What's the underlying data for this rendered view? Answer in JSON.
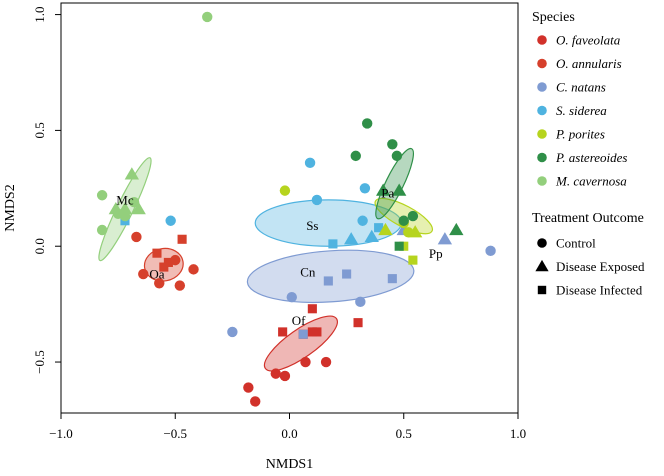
{
  "chart_data": {
    "type": "scatter",
    "title": "",
    "xlabel": "NMDS1",
    "ylabel": "NMDS2",
    "xlim": [
      -1.0,
      1.0
    ],
    "ylim": [
      -0.72,
      1.05
    ],
    "xticks": [
      -1.0,
      -0.5,
      0.0,
      0.5,
      1.0
    ],
    "yticks": [
      -0.5,
      0.0,
      0.5,
      1.0
    ],
    "xtick_labels": [
      "−1.0",
      "−0.5",
      "0.0",
      "0.5",
      "1.0"
    ],
    "ytick_labels": [
      "−0.5",
      "0.0",
      "0.5",
      "1.0"
    ],
    "grid": false,
    "legend": {
      "placement": "right",
      "species_title": "Species",
      "outcome_title": "Treatment Outcome"
    },
    "species": [
      {
        "key": "Of",
        "name": "O. faveolata",
        "color": "#d1312a"
      },
      {
        "key": "Oa",
        "name": "O. annularis",
        "color": "#d6402c"
      },
      {
        "key": "Cn",
        "name": "C. natans",
        "color": "#7f9bd2"
      },
      {
        "key": "Ss",
        "name": "S. siderea",
        "color": "#4fb3e0"
      },
      {
        "key": "Pp",
        "name": "P. porites",
        "color": "#b6d41e"
      },
      {
        "key": "Pa",
        "name": "P. astereoides",
        "color": "#2f8f48"
      },
      {
        "key": "Mc",
        "name": "M. cavernosa",
        "color": "#93cf7c"
      }
    ],
    "outcomes": [
      {
        "key": "control",
        "name": "Control",
        "shape": "circle"
      },
      {
        "key": "exposed",
        "name": "Disease Exposed",
        "shape": "triangle"
      },
      {
        "key": "infected",
        "name": "Disease Infected",
        "shape": "square"
      }
    ],
    "ellipses": [
      {
        "label": "Of",
        "species": "Of",
        "cx": 0.05,
        "cy": -0.42,
        "rx": 0.19,
        "ry": 0.06,
        "angle_deg": 35
      },
      {
        "label": "Oa",
        "species": "Oa",
        "cx": -0.55,
        "cy": -0.08,
        "rx": 0.085,
        "ry": 0.07,
        "angle_deg": 10
      },
      {
        "label": "Cn",
        "species": "Cn",
        "cx": 0.18,
        "cy": -0.13,
        "rx": 0.365,
        "ry": 0.11,
        "angle_deg": 4
      },
      {
        "label": "Ss",
        "species": "Ss",
        "cx": 0.17,
        "cy": 0.1,
        "rx": 0.32,
        "ry": 0.1,
        "angle_deg": 0
      },
      {
        "label": "Pp",
        "species": "Pp",
        "cx": 0.5,
        "cy": 0.13,
        "rx": 0.14,
        "ry": 0.045,
        "angle_deg": -28
      },
      {
        "label": "Pa",
        "species": "Pa",
        "cx": 0.46,
        "cy": 0.27,
        "rx": 0.17,
        "ry": 0.038,
        "angle_deg": 64
      },
      {
        "label": "Mc",
        "species": "Mc",
        "cx": -0.72,
        "cy": 0.16,
        "rx": 0.25,
        "ry": 0.035,
        "angle_deg": 64
      }
    ],
    "ellipse_labels": [
      {
        "text": "Of",
        "x": 0.04,
        "y": -0.34
      },
      {
        "text": "Oa",
        "x": -0.58,
        "y": -0.14
      },
      {
        "text": "Cn",
        "x": 0.08,
        "y": -0.13
      },
      {
        "text": "Ss",
        "x": 0.1,
        "y": 0.07
      },
      {
        "text": "Pp",
        "x": 0.64,
        "y": -0.05
      },
      {
        "text": "Pa",
        "x": 0.43,
        "y": 0.21
      },
      {
        "text": "Mc",
        "x": -0.72,
        "y": 0.18
      }
    ],
    "points": [
      {
        "species": "Of",
        "outcome": "control",
        "x": -0.18,
        "y": -0.61
      },
      {
        "species": "Of",
        "outcome": "control",
        "x": -0.15,
        "y": -0.67
      },
      {
        "species": "Of",
        "outcome": "control",
        "x": -0.06,
        "y": -0.55
      },
      {
        "species": "Of",
        "outcome": "control",
        "x": 0.07,
        "y": -0.5
      },
      {
        "species": "Of",
        "outcome": "control",
        "x": 0.16,
        "y": -0.5
      },
      {
        "species": "Of",
        "outcome": "control",
        "x": -0.02,
        "y": -0.56
      },
      {
        "species": "Of",
        "outcome": "infected",
        "x": -0.03,
        "y": -0.37
      },
      {
        "species": "Of",
        "outcome": "infected",
        "x": 0.1,
        "y": -0.37
      },
      {
        "species": "Of",
        "outcome": "infected",
        "x": 0.12,
        "y": -0.37
      },
      {
        "species": "Of",
        "outcome": "infected",
        "x": 0.3,
        "y": -0.33
      },
      {
        "species": "Of",
        "outcome": "infected",
        "x": 0.1,
        "y": -0.27
      },
      {
        "species": "Of",
        "outcome": "infected",
        "x": 0.06,
        "y": -0.38
      },
      {
        "species": "Oa",
        "outcome": "control",
        "x": -0.67,
        "y": 0.04
      },
      {
        "species": "Oa",
        "outcome": "control",
        "x": -0.64,
        "y": -0.12
      },
      {
        "species": "Oa",
        "outcome": "control",
        "x": -0.57,
        "y": -0.16
      },
      {
        "species": "Oa",
        "outcome": "control",
        "x": -0.48,
        "y": -0.17
      },
      {
        "species": "Oa",
        "outcome": "control",
        "x": -0.42,
        "y": -0.1
      },
      {
        "species": "Oa",
        "outcome": "control",
        "x": -0.5,
        "y": -0.06
      },
      {
        "species": "Oa",
        "outcome": "infected",
        "x": -0.58,
        "y": -0.03
      },
      {
        "species": "Oa",
        "outcome": "infected",
        "x": -0.55,
        "y": -0.09
      },
      {
        "species": "Oa",
        "outcome": "infected",
        "x": -0.47,
        "y": 0.03
      },
      {
        "species": "Oa",
        "outcome": "infected",
        "x": -0.53,
        "y": -0.07
      },
      {
        "species": "Cn",
        "outcome": "control",
        "x": -0.25,
        "y": -0.37
      },
      {
        "species": "Cn",
        "outcome": "control",
        "x": 0.01,
        "y": -0.22
      },
      {
        "species": "Cn",
        "outcome": "control",
        "x": 0.31,
        "y": -0.24
      },
      {
        "species": "Cn",
        "outcome": "control",
        "x": 0.88,
        "y": -0.02
      },
      {
        "species": "Cn",
        "outcome": "infected",
        "x": 0.17,
        "y": -0.15
      },
      {
        "species": "Cn",
        "outcome": "infected",
        "x": 0.25,
        "y": -0.12
      },
      {
        "species": "Cn",
        "outcome": "infected",
        "x": 0.45,
        "y": -0.14
      },
      {
        "species": "Cn",
        "outcome": "infected",
        "x": 0.06,
        "y": -0.38
      },
      {
        "species": "Cn",
        "outcome": "exposed",
        "x": 0.68,
        "y": 0.03
      },
      {
        "species": "Cn",
        "outcome": "exposed",
        "x": 0.5,
        "y": 0.07
      },
      {
        "species": "Ss",
        "outcome": "control",
        "x": -0.52,
        "y": 0.11
      },
      {
        "species": "Ss",
        "outcome": "control",
        "x": 0.09,
        "y": 0.36
      },
      {
        "species": "Ss",
        "outcome": "control",
        "x": 0.12,
        "y": 0.2
      },
      {
        "species": "Ss",
        "outcome": "control",
        "x": 0.33,
        "y": 0.25
      },
      {
        "species": "Ss",
        "outcome": "control",
        "x": 0.32,
        "y": 0.11
      },
      {
        "species": "Ss",
        "outcome": "infected",
        "x": -0.72,
        "y": 0.11
      },
      {
        "species": "Ss",
        "outcome": "infected",
        "x": 0.19,
        "y": 0.01
      },
      {
        "species": "Ss",
        "outcome": "infected",
        "x": 0.39,
        "y": 0.08
      },
      {
        "species": "Ss",
        "outcome": "exposed",
        "x": 0.27,
        "y": 0.03
      },
      {
        "species": "Ss",
        "outcome": "exposed",
        "x": 0.36,
        "y": 0.04
      },
      {
        "species": "Pp",
        "outcome": "control",
        "x": -0.02,
        "y": 0.24
      },
      {
        "species": "Pp",
        "outcome": "control",
        "x": 0.5,
        "y": 0.1
      },
      {
        "species": "Pp",
        "outcome": "control",
        "x": 0.52,
        "y": 0.06
      },
      {
        "species": "Pp",
        "outcome": "exposed",
        "x": 0.42,
        "y": 0.07
      },
      {
        "species": "Pp",
        "outcome": "exposed",
        "x": 0.55,
        "y": 0.06
      },
      {
        "species": "Pp",
        "outcome": "infected",
        "x": 0.54,
        "y": -0.06
      },
      {
        "species": "Pp",
        "outcome": "infected",
        "x": 0.5,
        "y": 0.0
      },
      {
        "species": "Pa",
        "outcome": "control",
        "x": 0.34,
        "y": 0.53
      },
      {
        "species": "Pa",
        "outcome": "control",
        "x": 0.29,
        "y": 0.39
      },
      {
        "species": "Pa",
        "outcome": "control",
        "x": 0.45,
        "y": 0.44
      },
      {
        "species": "Pa",
        "outcome": "control",
        "x": 0.47,
        "y": 0.39
      },
      {
        "species": "Pa",
        "outcome": "control",
        "x": 0.54,
        "y": 0.13
      },
      {
        "species": "Pa",
        "outcome": "control",
        "x": 0.5,
        "y": 0.11
      },
      {
        "species": "Pa",
        "outcome": "exposed",
        "x": 0.41,
        "y": 0.24
      },
      {
        "species": "Pa",
        "outcome": "exposed",
        "x": 0.48,
        "y": 0.24
      },
      {
        "species": "Pa",
        "outcome": "exposed",
        "x": 0.73,
        "y": 0.07
      },
      {
        "species": "Pa",
        "outcome": "infected",
        "x": 0.48,
        "y": 0.0
      },
      {
        "species": "Mc",
        "outcome": "control",
        "x": -0.36,
        "y": 0.99
      },
      {
        "species": "Mc",
        "outcome": "control",
        "x": -0.82,
        "y": 0.22
      },
      {
        "species": "Mc",
        "outcome": "control",
        "x": -0.82,
        "y": 0.07
      },
      {
        "species": "Mc",
        "outcome": "control",
        "x": -0.75,
        "y": 0.14
      },
      {
        "species": "Mc",
        "outcome": "control",
        "x": -0.68,
        "y": 0.19
      },
      {
        "species": "Mc",
        "outcome": "control",
        "x": -0.72,
        "y": 0.13
      },
      {
        "species": "Mc",
        "outcome": "exposed",
        "x": -0.69,
        "y": 0.31
      },
      {
        "species": "Mc",
        "outcome": "exposed",
        "x": -0.76,
        "y": 0.16
      },
      {
        "species": "Mc",
        "outcome": "exposed",
        "x": -0.72,
        "y": 0.16
      },
      {
        "species": "Mc",
        "outcome": "exposed",
        "x": -0.66,
        "y": 0.16
      }
    ]
  }
}
